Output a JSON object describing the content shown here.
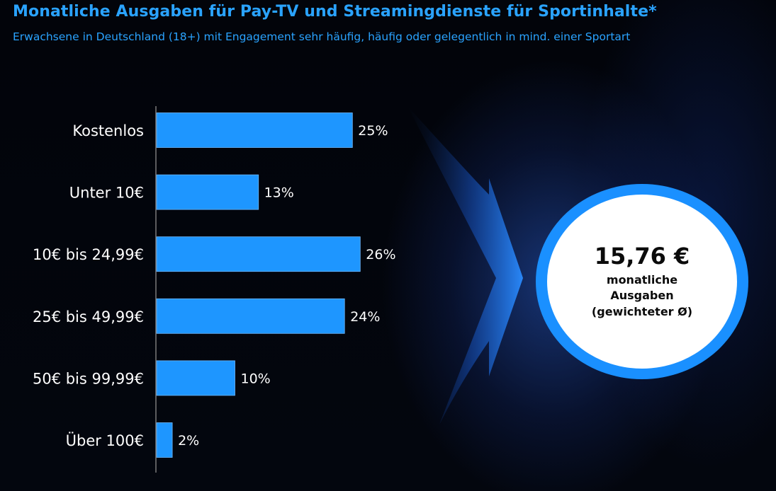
{
  "title": "Monatliche Ausgaben für Pay-TV und Streamingdienste für Sportinhalte*",
  "subtitle": "Erwachsene in Deutschland (18+) mit Engagement sehr häufig, häufig oder gelegentlich in mind. einer Sportart",
  "callout": {
    "value": "15,76 €",
    "line1": "monatliche",
    "line2": "Ausgaben",
    "line3": "(gewichteter Ø)"
  },
  "colors": {
    "bar": "#1e96ff",
    "accent": "#2aa3ff",
    "ring": "#1a90ff"
  },
  "chart_data": {
    "type": "bar",
    "orientation": "horizontal",
    "categories": [
      "Kostenlos",
      "Unter 10€",
      "10€ bis 24,99€",
      "25€ bis 49,99€",
      "50€ bis 99,99€",
      "Über 100€"
    ],
    "values": [
      25,
      13,
      26,
      24,
      10,
      2
    ],
    "value_labels": [
      "25%",
      "13%",
      "26%",
      "24%",
      "10%",
      "2%"
    ],
    "unit": "%",
    "xlim": [
      0,
      26
    ],
    "grid": false,
    "legend": "none"
  }
}
